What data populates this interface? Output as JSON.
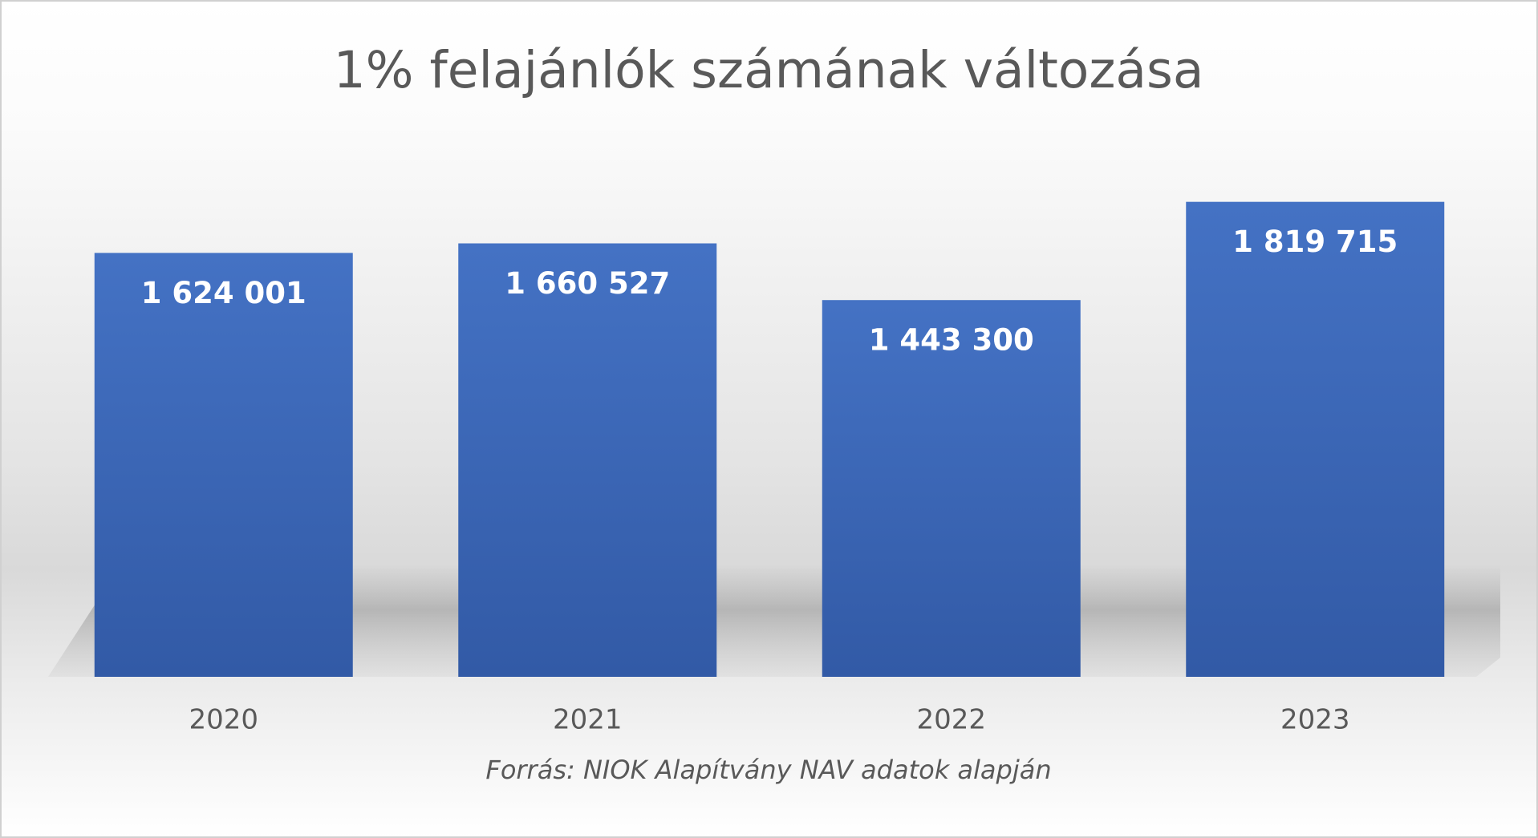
{
  "chart_data": {
    "type": "bar",
    "title": "1% felajánlók számának változása",
    "categories": [
      "2020",
      "2021",
      "2022",
      "2023"
    ],
    "values": [
      1624001,
      1660527,
      1443300,
      1819715
    ],
    "value_labels": [
      "1 624 001",
      "1 660 527",
      "1 443 300",
      "1 819 715"
    ],
    "color": "#4472c4",
    "ylim": [
      0,
      2000000
    ],
    "source": "Forrás: NIOK Alapítvány NAV adatok alapján"
  }
}
